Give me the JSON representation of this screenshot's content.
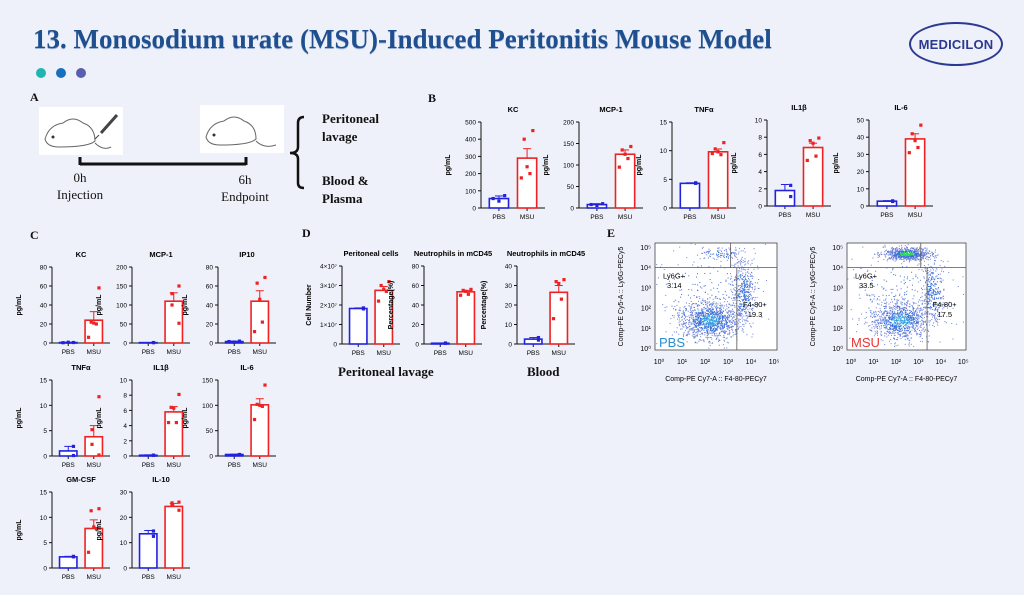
{
  "header": {
    "title": "13. Monosodium urate (MSU)-Induced Peritonitis Mouse Model",
    "logo_text": "MEDICILON",
    "dots_colors": [
      "#1fb5b0",
      "#1670c0",
      "#5b5fb0"
    ]
  },
  "colors": {
    "pbs": "#2222dd",
    "msu": "#ee2222",
    "title": "#1f4f8e",
    "logo": "#2b3990"
  },
  "panel_a": {
    "label": "A",
    "start_time": "0h",
    "start_label": "Injection",
    "end_time": "6h",
    "end_label": "Endpoint",
    "outputs": [
      {
        "line1": "Peritoneal",
        "line2": "lavage"
      },
      {
        "line1": "Blood &",
        "line2": "Plasma"
      }
    ],
    "icons": [
      "mouse-icon",
      "syringe-icon",
      "brace-icon"
    ]
  },
  "panel_labels": {
    "b": "B",
    "c": "C",
    "d": "D",
    "e": "E"
  },
  "panel_d": {
    "group1": "Peritoneal lavage",
    "group2": "Blood"
  },
  "chart_data": [
    {
      "id": "b_kc",
      "panel": "B",
      "type": "bar",
      "title": "KC",
      "ylabel": "pg/mL",
      "categories": [
        "PBS",
        "MSU"
      ],
      "ylim": [
        0,
        500
      ],
      "yticks": [
        0,
        100,
        200,
        300,
        400,
        500
      ],
      "series": [
        {
          "mean": 55,
          "sem": 15,
          "points": [
            72,
            40,
            55
          ]
        },
        {
          "mean": 290,
          "sem": 55,
          "points": [
            450,
            400,
            240,
            200,
            175
          ]
        }
      ]
    },
    {
      "id": "b_mcp1",
      "panel": "B",
      "type": "bar",
      "title": "MCP-1",
      "ylabel": "pg/mL",
      "categories": [
        "PBS",
        "MSU"
      ],
      "ylim": [
        0,
        200
      ],
      "yticks": [
        0,
        50,
        100,
        150,
        200
      ],
      "series": [
        {
          "mean": 8,
          "sem": 2,
          "points": [
            10,
            6,
            8
          ]
        },
        {
          "mean": 125,
          "sem": 10,
          "points": [
            143,
            135,
            125,
            115,
            95
          ]
        }
      ]
    },
    {
      "id": "b_tnfa",
      "panel": "B",
      "type": "bar",
      "title": "TNFα",
      "ylabel": "pg/mL",
      "categories": [
        "PBS",
        "MSU"
      ],
      "ylim": [
        0,
        15
      ],
      "yticks": [
        0,
        5,
        10,
        15
      ],
      "series": [
        {
          "mean": 4.3,
          "sem": 0.1,
          "points": [
            4.4,
            4.3
          ]
        },
        {
          "mean": 9.8,
          "sem": 0.5,
          "points": [
            11.4,
            10.3,
            9.8,
            9.3,
            9.5
          ]
        }
      ]
    },
    {
      "id": "b_il1b",
      "panel": "B",
      "type": "bar",
      "title": "IL1β",
      "ylabel": "pg/mL",
      "categories": [
        "PBS",
        "MSU"
      ],
      "ylim": [
        0,
        10
      ],
      "yticks": [
        0,
        2,
        4,
        6,
        8,
        10
      ],
      "series": [
        {
          "mean": 1.8,
          "sem": 0.7,
          "points": [
            2.4,
            1.1
          ]
        },
        {
          "mean": 6.8,
          "sem": 0.5,
          "points": [
            7.9,
            7.6,
            7.3,
            5.8,
            5.3
          ]
        }
      ]
    },
    {
      "id": "b_il6",
      "panel": "B",
      "type": "bar",
      "title": "IL-6",
      "ylabel": "pg/mL",
      "categories": [
        "PBS",
        "MSU"
      ],
      "ylim": [
        0,
        50
      ],
      "yticks": [
        0,
        10,
        20,
        30,
        40,
        50
      ],
      "series": [
        {
          "mean": 2.8,
          "sem": 0.3,
          "points": [
            3,
            2.6
          ]
        },
        {
          "mean": 39,
          "sem": 3,
          "points": [
            47,
            42,
            38,
            34,
            31
          ]
        }
      ]
    },
    {
      "id": "c_kc",
      "panel": "C",
      "type": "bar",
      "title": "KC",
      "ylabel": "pg/mL",
      "categories": [
        "PBS",
        "MSU"
      ],
      "ylim": [
        0,
        80
      ],
      "yticks": [
        0,
        20,
        40,
        60,
        80
      ],
      "series": [
        {
          "mean": 0.5,
          "sem": 0.2,
          "points": [
            0.5,
            0.8,
            0.3
          ]
        },
        {
          "mean": 24,
          "sem": 9,
          "points": [
            58,
            22,
            21,
            20,
            6
          ]
        }
      ]
    },
    {
      "id": "c_mcp1",
      "panel": "C",
      "type": "bar",
      "title": "MCP-1",
      "ylabel": "pg/mL",
      "categories": [
        "PBS",
        "MSU"
      ],
      "ylim": [
        0,
        200
      ],
      "yticks": [
        0,
        50,
        100,
        150,
        200
      ],
      "series": [
        {
          "mean": 1,
          "sem": 0.3,
          "points": [
            1,
            1.2
          ]
        },
        {
          "mean": 110,
          "sem": 22,
          "points": [
            150,
            130,
            100,
            52
          ]
        }
      ]
    },
    {
      "id": "c_ip10",
      "panel": "C",
      "type": "bar",
      "title": "IP10",
      "ylabel": "pg/mL",
      "categories": [
        "PBS",
        "MSU"
      ],
      "ylim": [
        0,
        80
      ],
      "yticks": [
        0,
        20,
        40,
        60,
        80
      ],
      "series": [
        {
          "mean": 1.5,
          "sem": 0.4,
          "points": [
            2,
            1,
            1.5
          ]
        },
        {
          "mean": 44,
          "sem": 11,
          "points": [
            69,
            63,
            46,
            22,
            12
          ]
        }
      ]
    },
    {
      "id": "c_tnfa",
      "panel": "C",
      "type": "bar",
      "title": "TNFα",
      "ylabel": "pg/mL",
      "categories": [
        "PBS",
        "MSU"
      ],
      "ylim": [
        0,
        15
      ],
      "yticks": [
        0,
        5,
        10,
        15
      ],
      "series": [
        {
          "mean": 1,
          "sem": 0.9,
          "points": [
            1.9,
            0.1
          ]
        },
        {
          "mean": 3.8,
          "sem": 2.2,
          "points": [
            11.7,
            5.2,
            2.3,
            0.2
          ]
        }
      ]
    },
    {
      "id": "c_il1b",
      "panel": "C",
      "type": "bar",
      "title": "IL1β",
      "ylabel": "pg/mL",
      "categories": [
        "PBS",
        "MSU"
      ],
      "ylim": [
        0,
        10
      ],
      "yticks": [
        0,
        2,
        4,
        6,
        8,
        10
      ],
      "series": [
        {
          "mean": 0.1,
          "sem": 0.05,
          "points": [
            0.1,
            0.1
          ]
        },
        {
          "mean": 5.8,
          "sem": 0.7,
          "points": [
            8.1,
            6.4,
            6.3,
            4.4,
            4.4
          ]
        }
      ]
    },
    {
      "id": "c_il6",
      "panel": "C",
      "type": "bar",
      "title": "IL-6",
      "ylabel": "pg/mL",
      "categories": [
        "PBS",
        "MSU"
      ],
      "ylim": [
        0,
        150
      ],
      "yticks": [
        0,
        50,
        100,
        150
      ],
      "series": [
        {
          "mean": 3,
          "sem": 0.5,
          "points": [
            3,
            2.5
          ]
        },
        {
          "mean": 101,
          "sem": 12,
          "points": [
            140,
            102,
            100,
            98,
            72
          ]
        }
      ]
    },
    {
      "id": "c_gmcsf",
      "panel": "C",
      "type": "bar",
      "title": "GM-CSF",
      "ylabel": "pg/mL",
      "categories": [
        "PBS",
        "MSU"
      ],
      "ylim": [
        0,
        15
      ],
      "yticks": [
        0,
        5,
        10,
        15
      ],
      "series": [
        {
          "mean": 2.2,
          "sem": 0.1,
          "points": [
            2.3,
            2.2
          ]
        },
        {
          "mean": 7.8,
          "sem": 1.7,
          "points": [
            11.7,
            11.3,
            8.1,
            7.8,
            3.1
          ]
        }
      ]
    },
    {
      "id": "c_il10",
      "panel": "C",
      "type": "bar",
      "title": "IL-10",
      "ylabel": "pg/mL",
      "categories": [
        "PBS",
        "MSU"
      ],
      "ylim": [
        0,
        30
      ],
      "yticks": [
        0,
        10,
        20,
        30
      ],
      "series": [
        {
          "mean": 13.5,
          "sem": 1.3,
          "points": [
            14.6,
            12.5
          ]
        },
        {
          "mean": 24.3,
          "sem": 1.2,
          "points": [
            26,
            25.7,
            25,
            22.8
          ]
        }
      ]
    },
    {
      "id": "d_cells",
      "panel": "D",
      "type": "bar",
      "title": "Peritoneal cells",
      "ylabel": "Cell Number",
      "categories": [
        "PBS",
        "MSU"
      ],
      "ylim": [
        0,
        40000000
      ],
      "yticks": [
        0,
        10000000,
        20000000,
        30000000,
        40000000
      ],
      "ytick_labels": [
        "0",
        "1×10⁷",
        "2×10⁷",
        "3×10⁷",
        "4×10⁷"
      ],
      "series": [
        {
          "mean": 18200000,
          "sem": 300000,
          "points": [
            18500000,
            18000000
          ]
        },
        {
          "mean": 27500000,
          "sem": 2000000,
          "points": [
            32000000,
            30000000,
            28000000,
            27000000,
            22000000
          ]
        }
      ]
    },
    {
      "id": "d_neut_lav",
      "panel": "D",
      "type": "bar",
      "title": "Neutrophils in mCD45",
      "ylabel": "Percentage(%)",
      "categories": [
        "PBS",
        "MSU"
      ],
      "ylim": [
        0,
        80
      ],
      "yticks": [
        0,
        20,
        40,
        60,
        80
      ],
      "series": [
        {
          "mean": 0.8,
          "sem": 0.2,
          "points": [
            0.8,
            1
          ]
        },
        {
          "mean": 53.5,
          "sem": 1.5,
          "points": [
            56,
            55,
            54,
            51,
            50
          ]
        }
      ]
    },
    {
      "id": "d_neut_blood",
      "panel": "D",
      "type": "bar",
      "title": "Neutrophils in mCD45",
      "ylabel": "Percentage(%)",
      "categories": [
        "PBS",
        "MSU"
      ],
      "ylim": [
        0,
        40
      ],
      "yticks": [
        0,
        10,
        20,
        30,
        40
      ],
      "series": [
        {
          "mean": 2.5,
          "sem": 0.8,
          "points": [
            3.3,
            2
          ]
        },
        {
          "mean": 26.5,
          "sem": 3.5,
          "points": [
            33,
            32,
            31,
            23,
            13
          ]
        }
      ]
    },
    {
      "id": "e_pbs",
      "panel": "E",
      "type": "scatter",
      "group": "PBS",
      "group_color": "#2a8fd0",
      "xlabel": "Comp-PE Cy7-A :: F4-80-PECy7",
      "ylabel": "Comp-PE Cy5-A :: Ly6G-PECy5",
      "scale": "log",
      "ticks": [
        "10⁰",
        "10¹",
        "10²",
        "10³",
        "10⁴",
        "10⁵"
      ],
      "gates": [
        {
          "name": "Ly6G+",
          "value": "3.14"
        },
        {
          "name": "F4-80+",
          "value": "19.3"
        }
      ]
    },
    {
      "id": "e_msu",
      "panel": "E",
      "type": "scatter",
      "group": "MSU",
      "group_color": "#ee3333",
      "xlabel": "Comp-PE Cy7-A :: F4-80-PECy7",
      "ylabel": "Comp-PE Cy5-A :: Ly6G-PECy5",
      "scale": "log",
      "ticks": [
        "10⁰",
        "10¹",
        "10²",
        "10³",
        "10⁴",
        "10⁵"
      ],
      "gates": [
        {
          "name": "Ly6G+",
          "value": "33.5"
        },
        {
          "name": "F4-80+",
          "value": "17.5"
        }
      ]
    }
  ]
}
